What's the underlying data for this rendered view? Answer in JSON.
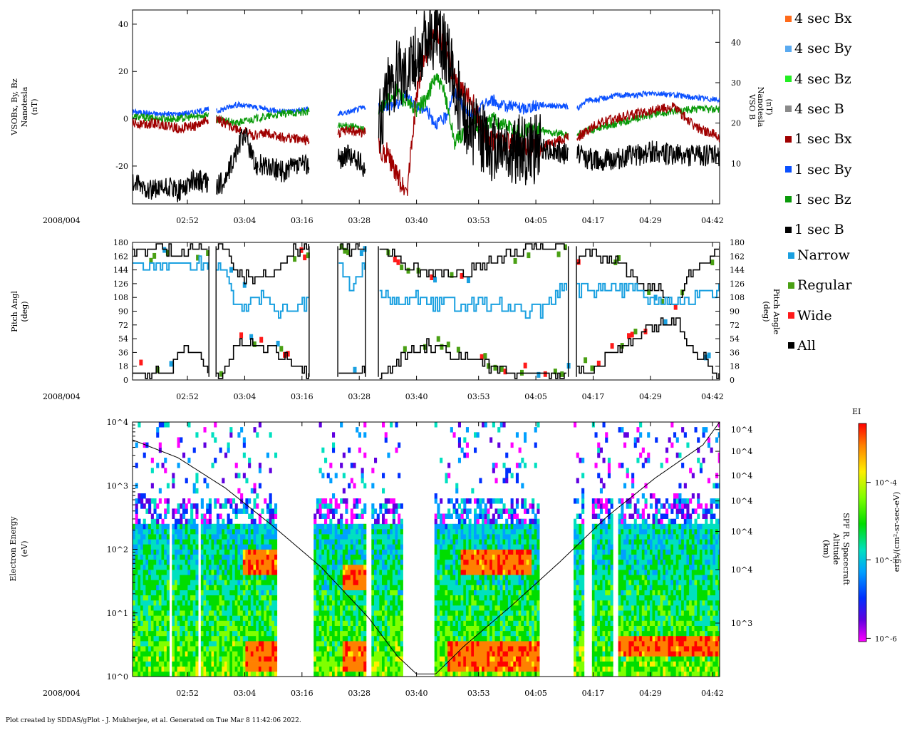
{
  "chart_data": [
    {
      "type": "line",
      "panel": "magnetic-field",
      "ylabel_left": [
        "VSOBx, By, Bz",
        "Nanotesla",
        "(nT)"
      ],
      "ylabel_right": [
        "VSO B",
        "Nanotesla",
        "(nT)"
      ],
      "ylim_left": [
        -36,
        46
      ],
      "left_ticks": [
        "40",
        "20",
        "0",
        "-20"
      ],
      "left_tick_values": [
        40,
        20,
        0,
        -20
      ],
      "ylim_right": [
        0,
        48
      ],
      "right_ticks": [
        "40",
        "30",
        "20",
        "10"
      ],
      "right_tick_values": [
        40,
        30,
        20,
        10
      ],
      "date_label": "2008/004",
      "x_ticks": [
        "02:52",
        "03:04",
        "03:16",
        "03:28",
        "03:40",
        "03:53",
        "04:05",
        "04:17",
        "04:29",
        "04:42"
      ],
      "xlim_minutes": [
        160.5,
        283.5
      ],
      "x_tick_minutes": [
        172,
        184,
        196,
        208,
        220,
        233,
        245,
        257,
        269,
        282
      ],
      "data_gaps": [
        [
          176.5,
          178.0
        ],
        [
          186.8,
          187.0
        ],
        [
          197.5,
          203.5
        ],
        [
          209.3,
          212.0
        ],
        [
          251.8,
          253.5
        ]
      ],
      "series": [
        {
          "name": "1 sec By",
          "color": "#0a50ff",
          "axis": "left",
          "t": [
            160.5,
            166,
            170,
            174,
            176.5,
            178,
            182,
            186,
            189,
            192,
            197.5,
            203.5,
            206,
            209.3,
            212,
            214,
            216,
            218,
            220,
            222,
            224,
            226,
            228,
            230,
            232,
            234,
            236,
            238,
            240,
            242,
            244,
            246,
            251.8,
            253.5,
            256,
            258,
            262,
            266,
            270,
            274,
            278,
            283.5
          ],
          "v": [
            3,
            2,
            2,
            3,
            4,
            3,
            6,
            5,
            4,
            3,
            4,
            2,
            3,
            5,
            4,
            6,
            6,
            10,
            5,
            4,
            -2,
            0,
            12,
            4,
            0,
            6,
            8,
            5,
            6,
            4,
            5,
            6,
            5,
            4,
            8,
            8,
            10,
            10,
            11,
            10,
            9,
            8
          ]
        },
        {
          "name": "1 sec Bz",
          "color": "#0a9a0a",
          "axis": "left",
          "t": [
            160.5,
            166,
            170,
            174,
            176.5,
            178,
            182,
            186,
            189,
            192,
            197.5,
            203.5,
            206,
            209.3,
            212,
            214,
            216,
            218,
            220,
            222,
            224,
            226,
            228,
            230,
            232,
            234,
            236,
            238,
            240,
            242,
            244,
            246,
            251.8,
            253.5,
            256,
            258,
            262,
            266,
            270,
            274,
            278,
            283.5
          ],
          "v": [
            1,
            0,
            0,
            1,
            2,
            0,
            -2,
            0,
            1,
            2,
            3,
            -3,
            -3,
            -5,
            2,
            8,
            12,
            6,
            4,
            8,
            18,
            10,
            -10,
            -6,
            -2,
            -4,
            0,
            -2,
            -4,
            -6,
            -4,
            -5,
            -7,
            -7,
            -5,
            -4,
            -2,
            0,
            2,
            3,
            4,
            4
          ]
        },
        {
          "name": "1 sec Bx",
          "color": "#a00000",
          "axis": "left",
          "t": [
            160.5,
            166,
            170,
            174,
            176.5,
            178,
            182,
            186,
            189,
            192,
            197.5,
            203.5,
            206,
            209.3,
            212,
            214,
            216,
            218,
            220,
            222,
            224,
            226,
            228,
            230,
            232,
            234,
            236,
            238,
            240,
            242,
            244,
            246,
            251.8,
            253.5,
            256,
            258,
            262,
            266,
            270,
            274,
            278,
            283.5
          ],
          "v": [
            -2,
            -2,
            -4,
            -3,
            0,
            0,
            -4,
            -7,
            -6,
            -8,
            -9,
            -6,
            -5,
            -6,
            -12,
            -15,
            -25,
            -30,
            10,
            28,
            38,
            30,
            16,
            10,
            6,
            -5,
            -10,
            -9,
            -10,
            -12,
            -13,
            -12,
            -8,
            -8,
            -5,
            -2,
            0,
            2,
            4,
            5,
            -3,
            -8
          ]
        },
        {
          "name": "1 sec B",
          "color": "#000000",
          "axis": "right",
          "t": [
            160.5,
            163,
            166,
            168,
            170,
            172,
            174,
            176.5,
            178,
            180,
            182,
            184,
            186,
            189,
            192,
            197.5,
            203.5,
            206,
            209.3,
            212,
            214,
            216,
            218,
            220,
            222,
            224,
            226,
            228,
            230,
            232,
            234,
            236,
            238,
            240,
            242,
            244,
            246,
            251.8,
            253.5,
            256,
            258,
            262,
            266,
            270,
            274,
            278,
            283.5
          ],
          "v": [
            5,
            4,
            3,
            4,
            3,
            5,
            6,
            5,
            4,
            6,
            12,
            18,
            10,
            9,
            8,
            10,
            11,
            12,
            9,
            18,
            30,
            32,
            34,
            36,
            40,
            42,
            38,
            30,
            22,
            18,
            16,
            14,
            15,
            12,
            14,
            13,
            14,
            12,
            13,
            11,
            11,
            11,
            12,
            13,
            12,
            12,
            12
          ]
        },
        {
          "name": "4 sec Bx",
          "color": "#ff6a1a",
          "axis": "left",
          "t": [],
          "v": []
        },
        {
          "name": "4 sec By",
          "color": "#5aaaf0",
          "axis": "left",
          "t": [],
          "v": []
        },
        {
          "name": "4 sec Bz",
          "color": "#22ee22",
          "axis": "left",
          "t": [],
          "v": []
        },
        {
          "name": "4 sec B",
          "color": "#8a8a8a",
          "axis": "right",
          "t": [],
          "v": []
        }
      ]
    },
    {
      "type": "line",
      "panel": "pitch-angle",
      "ylabel_left": [
        "Pitch Angl",
        "(deg)"
      ],
      "ylabel_right": [
        "Pitch Angle",
        "(deg)"
      ],
      "ylim": [
        0,
        180
      ],
      "y_ticks": [
        "180",
        "162",
        "144",
        "126",
        "108",
        "90",
        "72",
        "54",
        "36",
        "18",
        "0"
      ],
      "y_tick_values": [
        180,
        162,
        144,
        126,
        108,
        90,
        72,
        54,
        36,
        18,
        0
      ],
      "date_label": "2008/004",
      "x_ticks": [
        "02:52",
        "03:04",
        "03:16",
        "03:28",
        "03:40",
        "03:53",
        "04:05",
        "04:17",
        "04:29",
        "04:42"
      ],
      "xlim_minutes": [
        160.5,
        283.5
      ],
      "x_tick_minutes": [
        172,
        184,
        196,
        208,
        220,
        233,
        245,
        257,
        269,
        282
      ],
      "series": [
        {
          "name": "All (upper boundary)",
          "color": "#000000",
          "t": [
            160.5,
            162,
            164,
            166,
            168,
            170,
            172,
            174,
            176,
            176.5,
            178,
            180,
            182,
            186,
            190,
            194,
            197.5,
            203.5,
            206,
            209.3,
            212,
            214,
            218,
            222,
            226,
            230,
            234,
            238,
            242,
            246,
            251.8,
            253.5,
            256,
            258,
            262,
            266,
            270,
            274,
            278,
            283.5
          ],
          "v": [
            170,
            176,
            168,
            174,
            172,
            166,
            168,
            174,
            168,
            170,
            174,
            170,
            138,
            130,
            140,
            170,
            176,
            176,
            170,
            176,
            170,
            170,
            150,
            142,
            138,
            140,
            150,
            160,
            170,
            176,
            176,
            160,
            170,
            165,
            160,
            126,
            120,
            100,
            150,
            170
          ]
        },
        {
          "name": "All (lower boundary)",
          "color": "#000000",
          "t": [
            160.5,
            162,
            164,
            166,
            168,
            170,
            172,
            174,
            176,
            176.5,
            178,
            180,
            182,
            186,
            190,
            194,
            197.5,
            203.5,
            206,
            209.3,
            212,
            214,
            218,
            222,
            226,
            230,
            234,
            238,
            242,
            246,
            251.8,
            253.5,
            256,
            258,
            262,
            266,
            270,
            274,
            278,
            283.5
          ],
          "v": [
            6,
            10,
            8,
            12,
            8,
            30,
            40,
            36,
            8,
            6,
            6,
            8,
            48,
            46,
            40,
            20,
            6,
            6,
            10,
            6,
            6,
            10,
            36,
            44,
            40,
            30,
            20,
            10,
            6,
            6,
            6,
            18,
            12,
            20,
            40,
            54,
            70,
            80,
            40,
            6
          ]
        },
        {
          "name": "Narrow",
          "color": "#1aa0e0",
          "t": [
            160.5,
            176.5,
            178,
            180,
            182,
            184,
            186,
            188,
            190,
            192,
            194,
            197.5,
            203.5,
            206,
            209.3,
            212,
            214,
            216,
            218,
            220,
            222,
            224,
            226,
            228,
            230,
            232,
            234,
            236,
            238,
            240,
            242,
            244,
            246,
            251.8,
            253.5,
            256,
            258,
            262,
            266,
            270,
            274,
            278,
            283.5
          ],
          "v": [
            150,
            150,
            150,
            140,
            100,
            95,
            105,
            112,
            88,
            92,
            96,
            100,
            150,
            120,
            150,
            110,
            105,
            100,
            95,
            110,
            98,
            100,
            105,
            95,
            92,
            100,
            105,
            98,
            96,
            95,
            88,
            92,
            90,
            125,
            120,
            118,
            120,
            122,
            118,
            108,
            105,
            106,
            120
          ]
        }
      ]
    },
    {
      "type": "heatmap",
      "panel": "electron-spectrogram",
      "ylabel_left": [
        "Electron Energy",
        "(eV)"
      ],
      "ylabel_right": [
        "SPF R. Spacecraft",
        "Altitude",
        "(km)"
      ],
      "y_scale": "log",
      "ylim_eV": [
        1,
        10000
      ],
      "y_ticks": [
        "10^0",
        "10^1",
        "10^2",
        "10^3",
        "10^4"
      ],
      "y_tick_values": [
        1,
        10,
        100,
        1000,
        10000
      ],
      "right_tick_labels": [
        "10^4",
        "10^4",
        "10^4",
        "10^4",
        "10^4",
        "10^4",
        "10^3"
      ],
      "right_tick_fractions": [
        0.03,
        0.115,
        0.21,
        0.31,
        0.43,
        0.58,
        0.79
      ],
      "date_label": "2008/004",
      "x_ticks": [
        "02:52",
        "03:04",
        "03:16",
        "03:28",
        "03:40",
        "03:53",
        "04:05",
        "04:17",
        "04:29",
        "04:42"
      ],
      "xlim_minutes": [
        160.5,
        283.5
      ],
      "x_tick_minutes": [
        172,
        184,
        196,
        208,
        220,
        233,
        245,
        257,
        269,
        282
      ],
      "altitude_trace": {
        "t": [
          160.5,
          170,
          180,
          190,
          200,
          210,
          216,
          220,
          224,
          230,
          240,
          250,
          260,
          270,
          280,
          283.5
        ],
        "y_frac": [
          0.07,
          0.14,
          0.26,
          0.41,
          0.57,
          0.77,
          0.92,
          0.99,
          0.99,
          0.88,
          0.72,
          0.55,
          0.37,
          0.22,
          0.09,
          0.0
        ]
      },
      "data_gaps": [
        [
          167.8,
          168.3
        ],
        [
          174.0,
          174.8
        ],
        [
          190.5,
          198.0
        ],
        [
          209.3,
          210.5
        ],
        [
          217.0,
          223.5
        ],
        [
          245.5,
          252.5
        ],
        [
          255.0,
          256.5
        ],
        [
          261.0,
          262.0
        ]
      ],
      "hot_bands": [
        {
          "t": [
            183.5,
            193.0
          ],
          "log_eV": [
            1.55,
            2.0
          ]
        },
        {
          "t": [
            184.0,
            197.0
          ],
          "log_eV": [
            0.05,
            0.55
          ]
        },
        {
          "t": [
            204.0,
            209.0
          ],
          "log_eV": [
            0.05,
            0.55
          ]
        },
        {
          "t": [
            204.0,
            209.0
          ],
          "log_eV": [
            1.3,
            1.75
          ]
        },
        {
          "t": [
            229.0,
            244.0
          ],
          "log_eV": [
            1.55,
            1.95
          ]
        },
        {
          "t": [
            226.0,
            245.5
          ],
          "log_eV": [
            0.05,
            0.5
          ]
        },
        {
          "t": [
            262.0,
            283.5
          ],
          "log_eV": [
            0.25,
            0.6
          ]
        }
      ],
      "colorbar": {
        "title": "EI",
        "label": "ergs/(cm²-sr-sec-eV)",
        "ticks": [
          "10^-4",
          "10^-5",
          "10^-6"
        ],
        "tick_fractions": [
          0.27,
          0.625,
          0.985
        ],
        "colors": [
          "#ff0000",
          "#ff8000",
          "#ffee00",
          "#80ff00",
          "#00dd00",
          "#00e0c0",
          "#00a0ff",
          "#0030ff",
          "#6000e0",
          "#ff00ff"
        ]
      }
    }
  ],
  "legend": [
    {
      "label": "4 sec Bx",
      "color": "#ff6a1a"
    },
    {
      "label": "4 sec By",
      "color": "#5aaaf0"
    },
    {
      "label": "4 sec Bz",
      "color": "#22ee22"
    },
    {
      "label": "4 sec B",
      "color": "#8a8a8a"
    },
    {
      "label": "1 sec Bx",
      "color": "#a00000"
    },
    {
      "label": "1 sec By",
      "color": "#0a50ff"
    },
    {
      "label": "1 sec Bz",
      "color": "#0a9a0a"
    },
    {
      "label": "1 sec B",
      "color": "#000000"
    },
    {
      "label": "Narrow",
      "color": "#1aa0e0"
    },
    {
      "label": "Regular",
      "color": "#4aa014"
    },
    {
      "label": "Wide",
      "color": "#ff1a1a"
    },
    {
      "label": "All",
      "color": "#000000"
    }
  ],
  "footer": "Plot created by SDDAS/gPlot - J. Mukherjee, et al.  Generated on Tue Mar 8 11:42:06 2022."
}
